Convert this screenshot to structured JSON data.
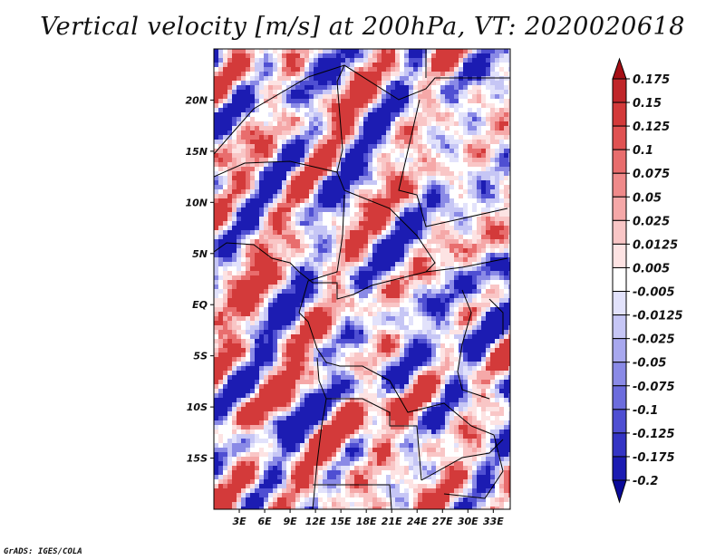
{
  "title": "Vertical velocity [m/s] at 200hPa, VT: 2020020618",
  "credit": "GrADS: IGES/COLA",
  "map": {
    "lon_range": [
      0,
      35
    ],
    "lat_range": [
      -20,
      25
    ],
    "lat_ticks": [
      {
        "value": 20,
        "label": "20N"
      },
      {
        "value": 15,
        "label": "15N"
      },
      {
        "value": 10,
        "label": "10N"
      },
      {
        "value": 5,
        "label": "5N"
      },
      {
        "value": 0,
        "label": "EQ"
      },
      {
        "value": -5,
        "label": "5S"
      },
      {
        "value": -10,
        "label": "10S"
      },
      {
        "value": -15,
        "label": "15S"
      }
    ],
    "lon_ticks": [
      {
        "value": 3,
        "label": "3E"
      },
      {
        "value": 6,
        "label": "6E"
      },
      {
        "value": 9,
        "label": "9E"
      },
      {
        "value": 12,
        "label": "12E"
      },
      {
        "value": 15,
        "label": "15E"
      },
      {
        "value": 18,
        "label": "18E"
      },
      {
        "value": 21,
        "label": "21E"
      },
      {
        "value": 24,
        "label": "24E"
      },
      {
        "value": 27,
        "label": "27E"
      },
      {
        "value": 30,
        "label": "30E"
      },
      {
        "value": 33,
        "label": "33E"
      }
    ]
  },
  "colorbar": {
    "levels": [
      "0.175",
      "0.15",
      "0.125",
      "0.1",
      "0.075",
      "0.05",
      "0.025",
      "0.0125",
      "0.005",
      "-0.005",
      "-0.0125",
      "-0.025",
      "-0.05",
      "-0.075",
      "-0.1",
      "-0.125",
      "-0.175",
      "-0.2"
    ],
    "colors": [
      "#a50f15",
      "#c0262a",
      "#d33a3a",
      "#e05252",
      "#e86d6d",
      "#ef8a8a",
      "#f5a8a8",
      "#f9c6c6",
      "#fde3e3",
      "#ffffff",
      "#e2e2fb",
      "#c6c6f5",
      "#a8a8ee",
      "#8a8ae6",
      "#6c6cdd",
      "#4f4fd2",
      "#3434c4",
      "#1c1cb2",
      "#0a0a9a"
    ]
  }
}
